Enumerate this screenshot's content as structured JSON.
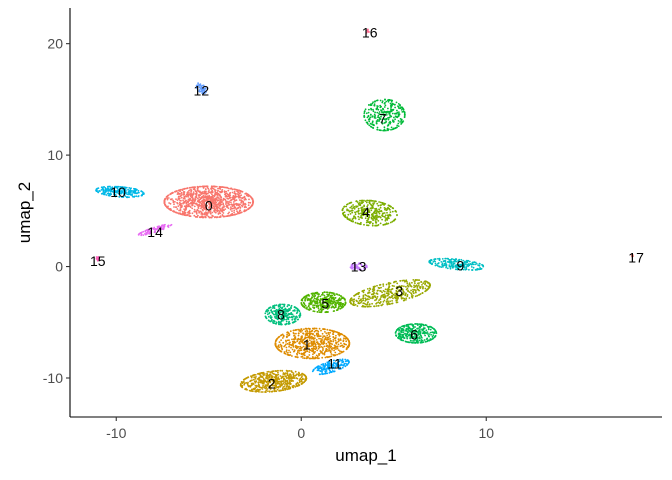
{
  "chart_data": {
    "type": "scatter",
    "title": "",
    "xlabel": "umap_1",
    "ylabel": "umap_2",
    "xlim": [
      -12.5,
      19.5
    ],
    "ylim": [
      -13.5,
      23.2
    ],
    "xticks": [
      -10,
      0,
      10
    ],
    "yticks": [
      -10,
      0,
      10,
      20
    ],
    "xtick_labels": [
      "-10",
      "0",
      "10"
    ],
    "ytick_labels": [
      "-10",
      "0",
      "10",
      "20"
    ],
    "grid": false,
    "legend": "none",
    "clusters": [
      {
        "label": "0",
        "color": "#F8766D",
        "cx": -5.0,
        "cy": 5.8,
        "sx": 2.4,
        "sy": 1.4,
        "rot": 0,
        "n": 1100
      },
      {
        "label": "1",
        "color": "#DE8C00",
        "cx": 0.6,
        "cy": -6.9,
        "sx": 2.0,
        "sy": 1.35,
        "rot": 0,
        "n": 650
      },
      {
        "label": "2",
        "color": "#C49A00",
        "cx": -1.5,
        "cy": -10.3,
        "sx": 1.8,
        "sy": 0.9,
        "rot": 12,
        "n": 550
      },
      {
        "label": "3",
        "color": "#99A800",
        "cx": 4.8,
        "cy": -2.4,
        "sx": 2.3,
        "sy": 0.9,
        "rot": 22,
        "n": 450
      },
      {
        "label": "4",
        "color": "#7CAE00",
        "cx": 3.7,
        "cy": 4.8,
        "sx": 1.5,
        "sy": 1.1,
        "rot": -15,
        "n": 380
      },
      {
        "label": "5",
        "color": "#53B400",
        "cx": 1.2,
        "cy": -3.2,
        "sx": 1.2,
        "sy": 0.9,
        "rot": 0,
        "n": 380
      },
      {
        "label": "6",
        "color": "#00BC56",
        "cx": 6.2,
        "cy": -6.0,
        "sx": 1.1,
        "sy": 0.85,
        "rot": 0,
        "n": 330
      },
      {
        "label": "7",
        "color": "#00BA38",
        "cx": 4.5,
        "cy": 13.6,
        "sx": 1.1,
        "sy": 1.4,
        "rot": 0,
        "n": 280
      },
      {
        "label": "8",
        "color": "#00BF7D",
        "cx": -1.0,
        "cy": -4.3,
        "sx": 0.95,
        "sy": 0.9,
        "rot": 0,
        "n": 280
      },
      {
        "label": "9",
        "color": "#00BFC4",
        "cx": 8.4,
        "cy": 0.2,
        "sx": 1.5,
        "sy": 0.45,
        "rot": -10,
        "n": 230
      },
      {
        "label": "10",
        "color": "#00B8E7",
        "cx": -9.8,
        "cy": 6.7,
        "sx": 1.3,
        "sy": 0.45,
        "rot": -8,
        "n": 230
      },
      {
        "label": "11",
        "color": "#00A9FF",
        "cx": 1.6,
        "cy": -9.0,
        "sx": 1.1,
        "sy": 0.45,
        "rot": 30,
        "n": 160
      },
      {
        "label": "12",
        "color": "#619CFF",
        "cx": -5.4,
        "cy": 16.0,
        "sx": 0.22,
        "sy": 0.5,
        "rot": 20,
        "n": 45
      },
      {
        "label": "13",
        "color": "#C77CFF",
        "cx": 3.1,
        "cy": 0.0,
        "sx": 0.45,
        "sy": 0.3,
        "rot": 0,
        "n": 60
      },
      {
        "label": "14",
        "color": "#E76BF3",
        "cx": -7.9,
        "cy": 3.3,
        "sx": 1.0,
        "sy": 0.2,
        "rot": 28,
        "n": 95
      },
      {
        "label": "15",
        "color": "#FF62BC",
        "cx": -11.0,
        "cy": 0.7,
        "sx": 0.1,
        "sy": 0.2,
        "rot": 0,
        "n": 10
      },
      {
        "label": "16",
        "color": "#FF6C91",
        "cx": 3.6,
        "cy": 21.1,
        "sx": 0.08,
        "sy": 0.2,
        "rot": 0,
        "n": 10
      },
      {
        "label": "17",
        "color": "#F8766D",
        "cx": 17.9,
        "cy": 1.0,
        "sx": 0.06,
        "sy": 0.1,
        "rot": 0,
        "n": 6
      }
    ],
    "label_positions": [
      {
        "label": "0",
        "x": -5.0,
        "y": 5.5
      },
      {
        "label": "1",
        "x": 0.3,
        "y": -7.0
      },
      {
        "label": "2",
        "x": -1.6,
        "y": -10.5
      },
      {
        "label": "3",
        "x": 5.3,
        "y": -2.2
      },
      {
        "label": "4",
        "x": 3.5,
        "y": 4.9
      },
      {
        "label": "5",
        "x": 1.3,
        "y": -3.3
      },
      {
        "label": "6",
        "x": 6.1,
        "y": -6.1
      },
      {
        "label": "7",
        "x": 4.4,
        "y": 13.3
      },
      {
        "label": "8",
        "x": -1.1,
        "y": -4.3
      },
      {
        "label": "9",
        "x": 8.6,
        "y": 0.1
      },
      {
        "label": "10",
        "x": -9.9,
        "y": 6.7
      },
      {
        "label": "11",
        "x": 1.8,
        "y": -8.7
      },
      {
        "label": "12",
        "x": -5.4,
        "y": 15.8
      },
      {
        "label": "13",
        "x": 3.1,
        "y": 0.0
      },
      {
        "label": "14",
        "x": -7.9,
        "y": 3.1
      },
      {
        "label": "15",
        "x": -11.0,
        "y": 0.5
      },
      {
        "label": "16",
        "x": 3.7,
        "y": 21.0
      },
      {
        "label": "17",
        "x": 18.1,
        "y": 0.8
      }
    ]
  }
}
